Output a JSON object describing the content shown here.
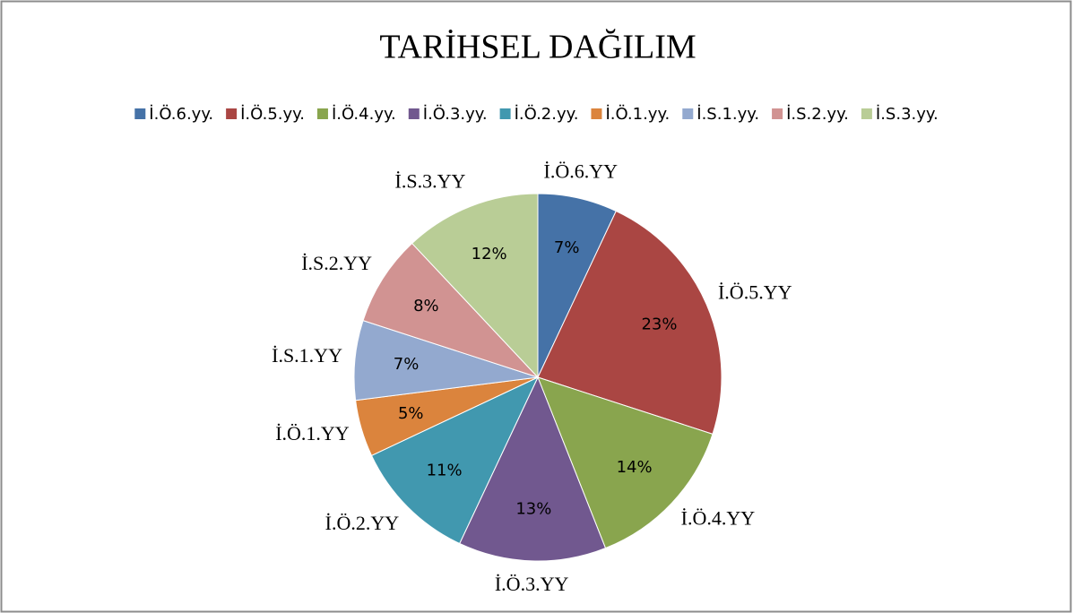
{
  "chart_data": {
    "type": "pie",
    "title": "TARİHSEL DAĞILIM",
    "categories": [
      "İ.Ö.6.yy.",
      "İ.Ö.5.yy.",
      "İ.Ö.4.yy.",
      "İ.Ö.3.yy.",
      "İ.Ö.2.yy.",
      "İ.Ö.1.yy.",
      "İ.S.1.yy.",
      "İ.S.2.yy.",
      "İ.S.3.yy."
    ],
    "labels": [
      "İ.Ö.6.YY",
      "İ.Ö.5.YY",
      "İ.Ö.4.YY",
      "İ.Ö.3.YY",
      "İ.Ö.2.YY",
      "İ.Ö.1.YY",
      "İ.S.1.YY",
      "İ.S.2.YY",
      "İ.S.3.YY"
    ],
    "values": [
      7,
      23,
      14,
      13,
      11,
      5,
      7,
      8,
      12
    ],
    "value_labels": [
      "7%",
      "23%",
      "14%",
      "13%",
      "11%",
      "5%",
      "7%",
      "8%",
      "12%"
    ],
    "colors": [
      "#4572a7",
      "#aa4643",
      "#89a54e",
      "#71588f",
      "#4198af",
      "#db843d",
      "#93a9cf",
      "#d19392",
      "#b9cd96"
    ],
    "legend": "top"
  }
}
